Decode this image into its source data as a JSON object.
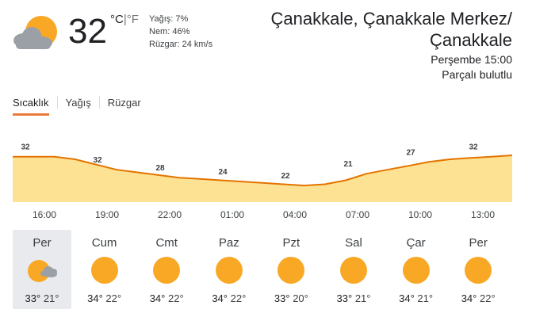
{
  "current": {
    "temperature": "32",
    "unit_celsius": "°C",
    "unit_separator": "|",
    "unit_fahrenheit": "°F",
    "icon": "partly-cloudy-icon",
    "details": {
      "precipitation": "Yağış: 7%",
      "humidity": "Nem: 46%",
      "wind": "Rüzgar: 24 km/s"
    }
  },
  "location": {
    "line1": "Çanakkale, Çanakkale Merkez/",
    "line2": "Çanakkale"
  },
  "datetime": "Perşembe 15:00",
  "condition": "Parçalı bulutlu",
  "tabs": [
    {
      "label": "Sıcaklık",
      "active": true
    },
    {
      "label": "Yağış",
      "active": false
    },
    {
      "label": "Rüzgar",
      "active": false
    }
  ],
  "chart_data": {
    "type": "area",
    "x": [
      "16:00",
      "19:00",
      "22:00",
      "01:00",
      "04:00",
      "07:00",
      "10:00",
      "13:00"
    ],
    "values": [
      32,
      32,
      28,
      24,
      22,
      21,
      27,
      32
    ],
    "labels": [
      "32",
      "32",
      "28",
      "24",
      "22",
      "21",
      "27",
      "32"
    ],
    "curve": [
      32,
      32,
      32,
      31,
      29,
      27,
      26,
      25,
      24,
      23.5,
      23,
      22.5,
      22,
      21.5,
      21,
      21.5,
      23,
      25.5,
      27,
      28.5,
      30,
      31,
      31.5,
      32,
      32.5
    ],
    "fill_color": "#fde293",
    "line_color": "#e37400"
  },
  "days": [
    {
      "name": "Per",
      "max": "33°",
      "min": "21°",
      "icon": "partly-cloudy-icon",
      "selected": true
    },
    {
      "name": "Cum",
      "max": "34°",
      "min": "22°",
      "icon": "sunny-icon",
      "selected": false
    },
    {
      "name": "Cmt",
      "max": "34°",
      "min": "22°",
      "icon": "sunny-icon",
      "selected": false
    },
    {
      "name": "Paz",
      "max": "34°",
      "min": "22°",
      "icon": "sunny-icon",
      "selected": false
    },
    {
      "name": "Pzt",
      "max": "33°",
      "min": "20°",
      "icon": "sunny-icon",
      "selected": false
    },
    {
      "name": "Sal",
      "max": "33°",
      "min": "21°",
      "icon": "sunny-icon",
      "selected": false
    },
    {
      "name": "Çar",
      "max": "34°",
      "min": "21°",
      "icon": "sunny-icon",
      "selected": false
    },
    {
      "name": "Per",
      "max": "34°",
      "min": "22°",
      "icon": "sunny-icon",
      "selected": false
    }
  ]
}
